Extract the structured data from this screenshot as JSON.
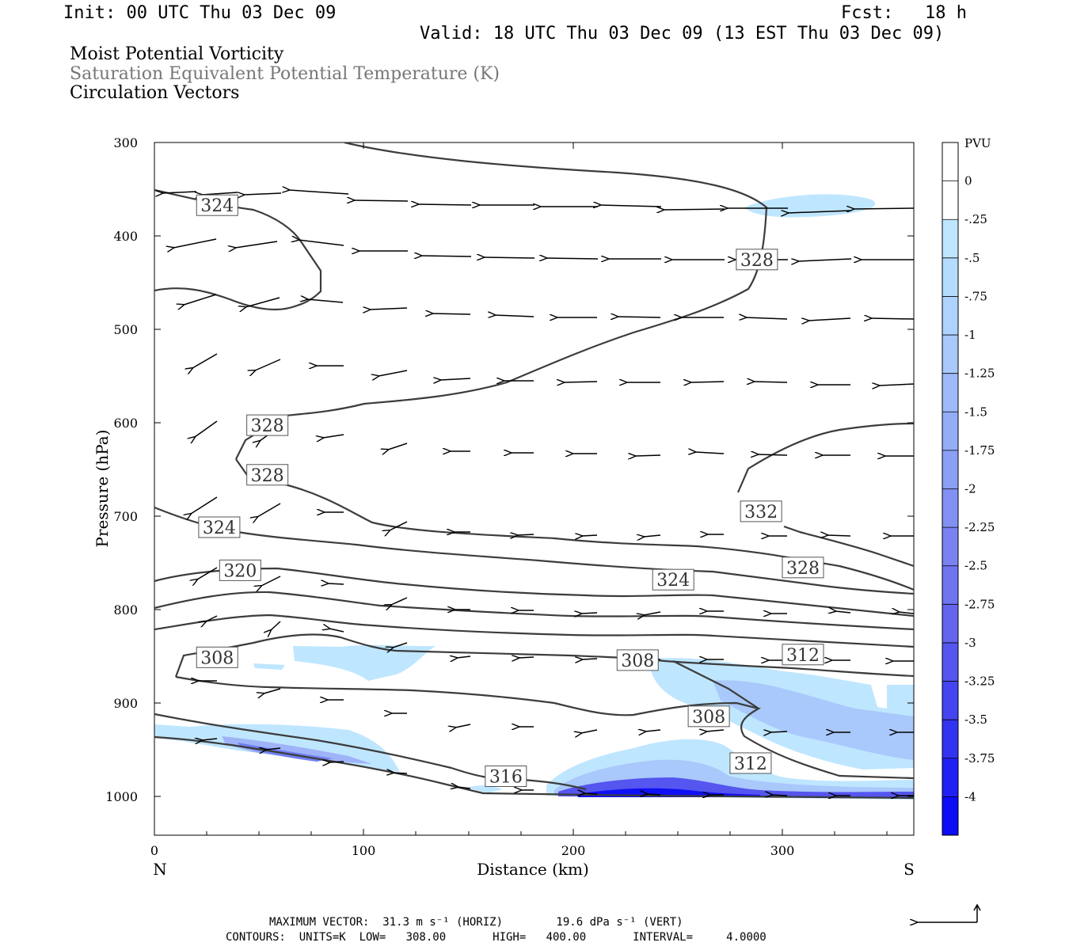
{
  "header": {
    "init": "Init: 00 UTC Thu 03 Dec 09",
    "fcst": "Fcst:   18 h",
    "valid": "Valid: 18 UTC Thu 03 Dec 09 (13 EST Thu 03 Dec 09)"
  },
  "fields": {
    "field1": "Moist Potential Vorticity",
    "field2": "Saturation Equivalent Potential Temperature (K)",
    "field3": "Circulation Vectors"
  },
  "footer": {
    "max_vector": "MAXIMUM VECTOR:  31.3 m s⁻¹ (HORIZ)        19.6 dPa s⁻¹ (VERT)",
    "contours": "CONTOURS:  UNITS=K  LOW=   308.00       HIGH=   400.00       INTERVAL=     4.0000"
  },
  "colors": {
    "shade_light": "#bfe6ff",
    "shade_mid": "#a9c8fb",
    "shade_dark": "#6f7ff0",
    "shade_deep": "#1010f5",
    "contour": "#3c3c3c"
  },
  "chart_data": {
    "type": "cross-section",
    "xlabel": "Distance (km)",
    "ylabel": "Pressure (hPa)",
    "x_ticks": [
      0,
      100,
      200,
      300
    ],
    "x_tick_labels": [
      "0",
      "100",
      "200",
      "300"
    ],
    "y_ticks": [
      300,
      400,
      500,
      600,
      700,
      800,
      900,
      1000
    ],
    "y_tick_labels": [
      "300",
      "400",
      "500",
      "600",
      "700",
      "800",
      "900",
      "1000"
    ],
    "xlim": [
      0,
      363
    ],
    "ylim": [
      1040,
      300
    ],
    "left_end_label": "N",
    "right_end_label": "S",
    "colorbar": {
      "units": "PVU",
      "labels": [
        "0",
        "-.25",
        "-.5",
        "-.75",
        "-1",
        "-1.25",
        "-1.5",
        "-1.75",
        "-2",
        "-2.25",
        "-2.5",
        "-2.75",
        "-3",
        "-3.25",
        "-3.5",
        "-3.75",
        "-4"
      ],
      "colors": [
        "#ffffff",
        "#ffffff",
        "#bfe6ff",
        "#b3dcff",
        "#aed3fe",
        "#a9c8fb",
        "#9fbaf9",
        "#94adf7",
        "#8b9ff5",
        "#8290f3",
        "#7a82f1",
        "#6f74ef",
        "#6464ee",
        "#5555ef",
        "#4444f0",
        "#3333f2",
        "#2020f4",
        "#0c0cf6"
      ]
    },
    "contour_labels": [
      {
        "text": "324",
        "x": 30,
        "y": 367
      },
      {
        "text": "328",
        "x": 288,
        "y": 425
      },
      {
        "text": "328",
        "x": 54,
        "y": 602
      },
      {
        "text": "328",
        "x": 54,
        "y": 655
      },
      {
        "text": "332",
        "x": 290,
        "y": 694
      },
      {
        "text": "324",
        "x": 31,
        "y": 711
      },
      {
        "text": "328",
        "x": 310,
        "y": 754
      },
      {
        "text": "320",
        "x": 41,
        "y": 757
      },
      {
        "text": "324",
        "x": 248,
        "y": 767
      },
      {
        "text": "308",
        "x": 30,
        "y": 850
      },
      {
        "text": "308",
        "x": 231,
        "y": 853
      },
      {
        "text": "312",
        "x": 310,
        "y": 847
      },
      {
        "text": "308",
        "x": 265,
        "y": 913
      },
      {
        "text": "312",
        "x": 285,
        "y": 963
      },
      {
        "text": "316",
        "x": 168,
        "y": 977
      }
    ]
  }
}
